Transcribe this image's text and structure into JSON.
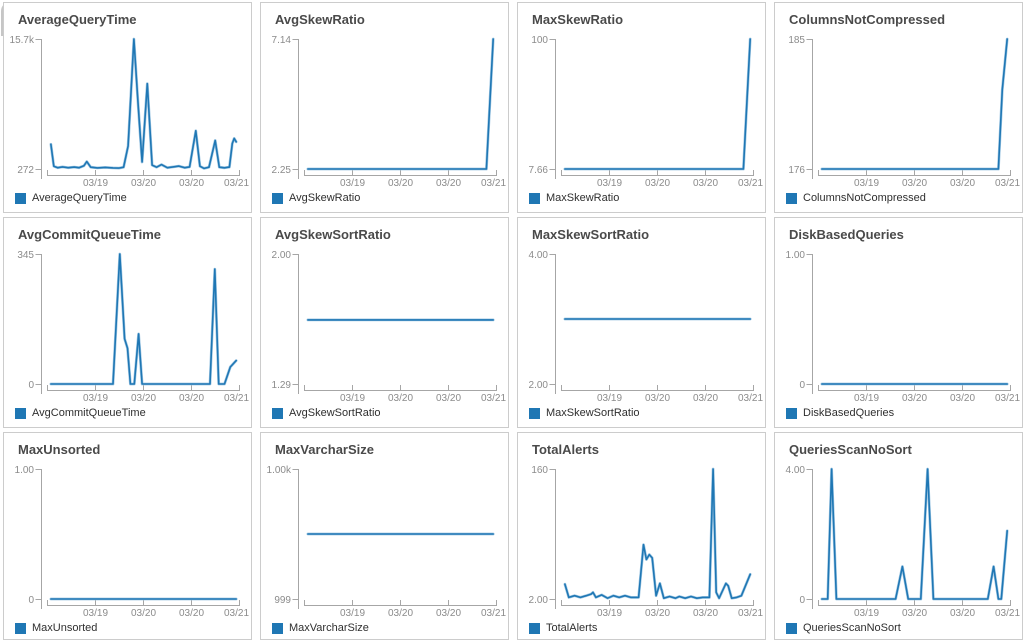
{
  "colors": {
    "line": "#1f77b4",
    "line_halo": "#a3c9e4",
    "axis": "#a6a6a6",
    "tick_text": "#8b8b8b",
    "title_text": "#4a4a4a",
    "legend_text": "#2f2f2f",
    "panel_border": "#cccccc",
    "background": "#ffffff"
  },
  "chart_data": [
    {
      "type": "line",
      "title": "AverageQueryTime",
      "legend": "AverageQueryTime",
      "y_min": 272,
      "y_max": 15700,
      "y_min_label": "272",
      "y_max_label": "15.7k",
      "x_tick_labels": [
        "03/19",
        "03/20",
        "03/20",
        "03/21"
      ],
      "points": [
        [
          0.02,
          3200
        ],
        [
          0.035,
          600
        ],
        [
          0.055,
          430
        ],
        [
          0.08,
          520
        ],
        [
          0.11,
          430
        ],
        [
          0.14,
          500
        ],
        [
          0.165,
          430
        ],
        [
          0.19,
          650
        ],
        [
          0.205,
          1150
        ],
        [
          0.225,
          480
        ],
        [
          0.26,
          400
        ],
        [
          0.3,
          460
        ],
        [
          0.34,
          400
        ],
        [
          0.37,
          380
        ],
        [
          0.395,
          480
        ],
        [
          0.418,
          3000
        ],
        [
          0.448,
          15700
        ],
        [
          0.468,
          8500
        ],
        [
          0.49,
          1100
        ],
        [
          0.517,
          10400
        ],
        [
          0.542,
          740
        ],
        [
          0.565,
          480
        ],
        [
          0.59,
          800
        ],
        [
          0.62,
          430
        ],
        [
          0.65,
          520
        ],
        [
          0.68,
          620
        ],
        [
          0.71,
          430
        ],
        [
          0.735,
          520
        ],
        [
          0.767,
          4800
        ],
        [
          0.788,
          600
        ],
        [
          0.81,
          340
        ],
        [
          0.835,
          480
        ],
        [
          0.867,
          3650
        ],
        [
          0.888,
          480
        ],
        [
          0.915,
          420
        ],
        [
          0.94,
          500
        ],
        [
          0.955,
          3300
        ],
        [
          0.965,
          3900
        ],
        [
          0.975,
          3500
        ]
      ]
    },
    {
      "type": "line",
      "title": "AvgSkewRatio",
      "legend": "AvgSkewRatio",
      "y_min": 2.25,
      "y_max": 7.14,
      "y_min_label": "2.25",
      "y_max_label": "7.14",
      "x_tick_labels": [
        "03/19",
        "03/20",
        "03/20",
        "03/21"
      ],
      "points": [
        [
          0.02,
          2.25
        ],
        [
          0.5,
          2.25
        ],
        [
          0.94,
          2.25
        ],
        [
          0.975,
          7.14
        ]
      ]
    },
    {
      "type": "line",
      "title": "MaxSkewRatio",
      "legend": "MaxSkewRatio",
      "y_min": 7.66,
      "y_max": 100,
      "y_min_label": "7.66",
      "y_max_label": "100",
      "x_tick_labels": [
        "03/19",
        "03/20",
        "03/20",
        "03/21"
      ],
      "points": [
        [
          0.02,
          7.66
        ],
        [
          0.5,
          7.66
        ],
        [
          0.94,
          7.66
        ],
        [
          0.975,
          100
        ]
      ]
    },
    {
      "type": "line",
      "title": "ColumnsNotCompressed",
      "legend": "ColumnsNotCompressed",
      "y_min": 176,
      "y_max": 185,
      "y_min_label": "176",
      "y_max_label": "185",
      "x_tick_labels": [
        "03/19",
        "03/20",
        "03/20",
        "03/21"
      ],
      "points": [
        [
          0.02,
          176
        ],
        [
          0.5,
          176
        ],
        [
          0.93,
          176
        ],
        [
          0.95,
          181.5
        ],
        [
          0.975,
          185
        ]
      ]
    },
    {
      "type": "line",
      "title": "AvgCommitQueueTime",
      "legend": "AvgCommitQueueTime",
      "y_min": 0,
      "y_max": 345,
      "y_min_label": "0",
      "y_max_label": "345",
      "x_tick_labels": [
        "03/19",
        "03/20",
        "03/20",
        "03/21"
      ],
      "points": [
        [
          0.02,
          0
        ],
        [
          0.34,
          0
        ],
        [
          0.375,
          345
        ],
        [
          0.4,
          120
        ],
        [
          0.415,
          95
        ],
        [
          0.43,
          0
        ],
        [
          0.45,
          0
        ],
        [
          0.472,
          133
        ],
        [
          0.49,
          0
        ],
        [
          0.84,
          0
        ],
        [
          0.865,
          305
        ],
        [
          0.885,
          0
        ],
        [
          0.915,
          0
        ],
        [
          0.945,
          45
        ],
        [
          0.975,
          62
        ]
      ]
    },
    {
      "type": "line",
      "title": "AvgSkewSortRatio",
      "legend": "AvgSkewSortRatio",
      "y_min": 1.29,
      "y_max": 2.0,
      "y_min_label": "1.29",
      "y_max_label": "2.00",
      "x_tick_labels": [
        "03/19",
        "03/20",
        "03/20",
        "03/21"
      ],
      "points": [
        [
          0.02,
          1.64
        ],
        [
          0.5,
          1.64
        ],
        [
          0.975,
          1.64
        ]
      ]
    },
    {
      "type": "line",
      "title": "MaxSkewSortRatio",
      "legend": "MaxSkewSortRatio",
      "y_min": 2.0,
      "y_max": 4.0,
      "y_min_label": "2.00",
      "y_max_label": "4.00",
      "x_tick_labels": [
        "03/19",
        "03/20",
        "03/20",
        "03/21"
      ],
      "points": [
        [
          0.02,
          3.0
        ],
        [
          0.5,
          3.0
        ],
        [
          0.975,
          3.0
        ]
      ]
    },
    {
      "type": "line",
      "title": "DiskBasedQueries",
      "legend": "DiskBasedQueries",
      "y_min": 0,
      "y_max": 1.0,
      "y_min_label": "0",
      "y_max_label": "1.00",
      "x_tick_labels": [
        "03/19",
        "03/20",
        "03/20",
        "03/21"
      ],
      "points": [
        [
          0.02,
          0
        ],
        [
          0.5,
          0
        ],
        [
          0.975,
          0
        ]
      ]
    },
    {
      "type": "line",
      "title": "MaxUnsorted",
      "legend": "MaxUnsorted",
      "y_min": 0,
      "y_max": 1.0,
      "y_min_label": "0",
      "y_max_label": "1.00",
      "x_tick_labels": [
        "03/19",
        "03/20",
        "03/20",
        "03/21"
      ],
      "points": [
        [
          0.02,
          0
        ],
        [
          0.5,
          0
        ],
        [
          0.975,
          0
        ]
      ]
    },
    {
      "type": "line",
      "title": "MaxVarcharSize",
      "legend": "MaxVarcharSize",
      "y_min": 999,
      "y_max": 1000,
      "y_min_label": "999",
      "y_max_label": "1.00k",
      "x_tick_labels": [
        "03/19",
        "03/20",
        "03/20",
        "03/21"
      ],
      "points": [
        [
          0.02,
          999.5
        ],
        [
          0.5,
          999.5
        ],
        [
          0.975,
          999.5
        ]
      ]
    },
    {
      "type": "line",
      "title": "TotalAlerts",
      "legend": "TotalAlerts",
      "y_min": 2.0,
      "y_max": 160,
      "y_min_label": "2.00",
      "y_max_label": "160",
      "x_tick_labels": [
        "03/19",
        "03/20",
        "03/20",
        "03/21"
      ],
      "points": [
        [
          0.02,
          20
        ],
        [
          0.04,
          4
        ],
        [
          0.07,
          6
        ],
        [
          0.1,
          4
        ],
        [
          0.13,
          6
        ],
        [
          0.155,
          8
        ],
        [
          0.165,
          10
        ],
        [
          0.18,
          4
        ],
        [
          0.21,
          7
        ],
        [
          0.24,
          3
        ],
        [
          0.27,
          6
        ],
        [
          0.3,
          4
        ],
        [
          0.33,
          6
        ],
        [
          0.36,
          4
        ],
        [
          0.4,
          4
        ],
        [
          0.425,
          68
        ],
        [
          0.44,
          50
        ],
        [
          0.455,
          56
        ],
        [
          0.47,
          52
        ],
        [
          0.49,
          6
        ],
        [
          0.51,
          21
        ],
        [
          0.53,
          3
        ],
        [
          0.56,
          5
        ],
        [
          0.59,
          3
        ],
        [
          0.61,
          5
        ],
        [
          0.64,
          3
        ],
        [
          0.67,
          5
        ],
        [
          0.7,
          3
        ],
        [
          0.73,
          4
        ],
        [
          0.765,
          4
        ],
        [
          0.784,
          160
        ],
        [
          0.8,
          10
        ],
        [
          0.815,
          3
        ],
        [
          0.85,
          21
        ],
        [
          0.862,
          18
        ],
        [
          0.88,
          3
        ],
        [
          0.905,
          4
        ],
        [
          0.93,
          6
        ],
        [
          0.975,
          32
        ]
      ]
    },
    {
      "type": "line",
      "title": "QueriesScanNoSort",
      "legend": "QueriesScanNoSort",
      "y_min": 0,
      "y_max": 4.0,
      "y_min_label": "0",
      "y_max_label": "4.00",
      "x_tick_labels": [
        "03/19",
        "03/20",
        "03/20",
        "03/21"
      ],
      "points": [
        [
          0.02,
          0
        ],
        [
          0.05,
          0
        ],
        [
          0.07,
          4
        ],
        [
          0.095,
          0
        ],
        [
          0.4,
          0
        ],
        [
          0.435,
          1
        ],
        [
          0.465,
          0
        ],
        [
          0.53,
          0
        ],
        [
          0.565,
          4
        ],
        [
          0.595,
          0
        ],
        [
          0.875,
          0
        ],
        [
          0.905,
          1
        ],
        [
          0.93,
          0
        ],
        [
          0.945,
          0
        ],
        [
          0.975,
          2.1
        ]
      ]
    }
  ]
}
